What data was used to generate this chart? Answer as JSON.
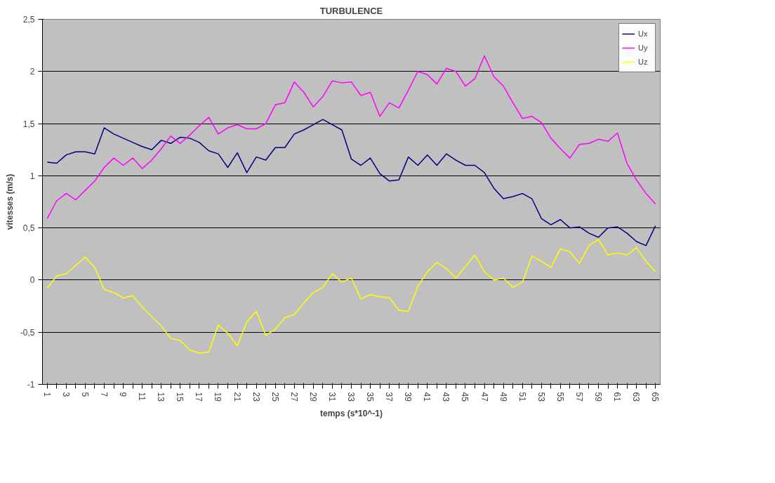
{
  "chart_data": {
    "type": "line",
    "title": "TURBULENCE",
    "xlabel": "temps (s*10^-1)",
    "ylabel": "vitesses (m/s)",
    "categories": [
      "1",
      null,
      "3",
      null,
      "5",
      null,
      "7",
      null,
      "9",
      null,
      "11",
      null,
      "13",
      null,
      "15",
      null,
      "17",
      null,
      "19",
      null,
      "21",
      null,
      "23",
      null,
      "25",
      null,
      "27",
      null,
      "29",
      null,
      "31",
      null,
      "33",
      null,
      "35",
      null,
      "37",
      null,
      "39",
      null,
      "41",
      null,
      "43",
      null,
      "45",
      null,
      "47",
      null,
      "49",
      null,
      "51",
      null,
      "53",
      null,
      "55",
      null,
      "57",
      null,
      "59",
      null,
      "61",
      null,
      "63",
      null,
      "65"
    ],
    "series": [
      {
        "name": "Ux",
        "color": "#000080",
        "values": [
          1.13,
          1.12,
          1.2,
          1.23,
          1.23,
          1.21,
          1.46,
          1.4,
          1.36,
          1.32,
          1.28,
          1.25,
          1.34,
          1.31,
          1.37,
          1.36,
          1.32,
          1.24,
          1.21,
          1.08,
          1.22,
          1.03,
          1.18,
          1.15,
          1.27,
          1.27,
          1.4,
          1.44,
          1.49,
          1.54,
          1.49,
          1.44,
          1.16,
          1.1,
          1.17,
          1.02,
          0.95,
          0.96,
          1.18,
          1.1,
          1.2,
          1.1,
          1.21,
          1.15,
          1.1,
          1.1,
          1.03,
          0.88,
          0.78,
          0.8,
          0.83,
          0.78,
          0.59,
          0.53,
          0.58,
          0.5,
          0.51,
          0.45,
          0.41,
          0.5,
          0.51,
          0.45,
          0.37,
          0.33,
          0.52
        ]
      },
      {
        "name": "Uy",
        "color": "#ff00ff",
        "values": [
          0.59,
          0.76,
          0.83,
          0.77,
          0.86,
          0.95,
          1.08,
          1.17,
          1.1,
          1.17,
          1.07,
          1.15,
          1.26,
          1.38,
          1.31,
          1.39,
          1.48,
          1.56,
          1.4,
          1.46,
          1.49,
          1.45,
          1.45,
          1.5,
          1.68,
          1.7,
          1.9,
          1.8,
          1.66,
          1.76,
          1.91,
          1.89,
          1.9,
          1.77,
          1.8,
          1.57,
          1.7,
          1.65,
          1.82,
          2.0,
          1.97,
          1.88,
          2.03,
          2.0,
          1.86,
          1.93,
          2.15,
          1.95,
          1.86,
          1.7,
          1.55,
          1.57,
          1.51,
          1.36,
          1.26,
          1.17,
          1.3,
          1.31,
          1.35,
          1.33,
          1.41,
          1.12,
          0.96,
          0.83,
          0.73
        ]
      },
      {
        "name": "Uz",
        "color": "#ffff00",
        "values": [
          -0.08,
          0.04,
          0.06,
          0.14,
          0.22,
          0.12,
          -0.09,
          -0.12,
          -0.17,
          -0.15,
          -0.26,
          -0.35,
          -0.44,
          -0.56,
          -0.58,
          -0.67,
          -0.7,
          -0.69,
          -0.43,
          -0.51,
          -0.63,
          -0.4,
          -0.3,
          -0.53,
          -0.47,
          -0.36,
          -0.33,
          -0.22,
          -0.12,
          -0.07,
          0.06,
          -0.02,
          0.02,
          -0.18,
          -0.14,
          -0.16,
          -0.17,
          -0.29,
          -0.3,
          -0.06,
          0.08,
          0.17,
          0.11,
          0.02,
          0.13,
          0.24,
          0.08,
          0.0,
          0.02,
          -0.07,
          -0.02,
          0.23,
          0.18,
          0.12,
          0.3,
          0.27,
          0.16,
          0.33,
          0.39,
          0.24,
          0.26,
          0.24,
          0.31,
          0.18,
          0.08
        ]
      }
    ],
    "ylim": [
      -1,
      2.5
    ],
    "yticks": [
      -1,
      {
        "value": -0.5,
        "label": "-0,5"
      },
      0,
      {
        "value": 0.5,
        "label": "0,5"
      },
      1,
      {
        "value": 1.5,
        "label": "1,5"
      },
      2,
      {
        "value": 2.5,
        "label": "2,5"
      }
    ],
    "grid": "y",
    "legend": "top right"
  }
}
